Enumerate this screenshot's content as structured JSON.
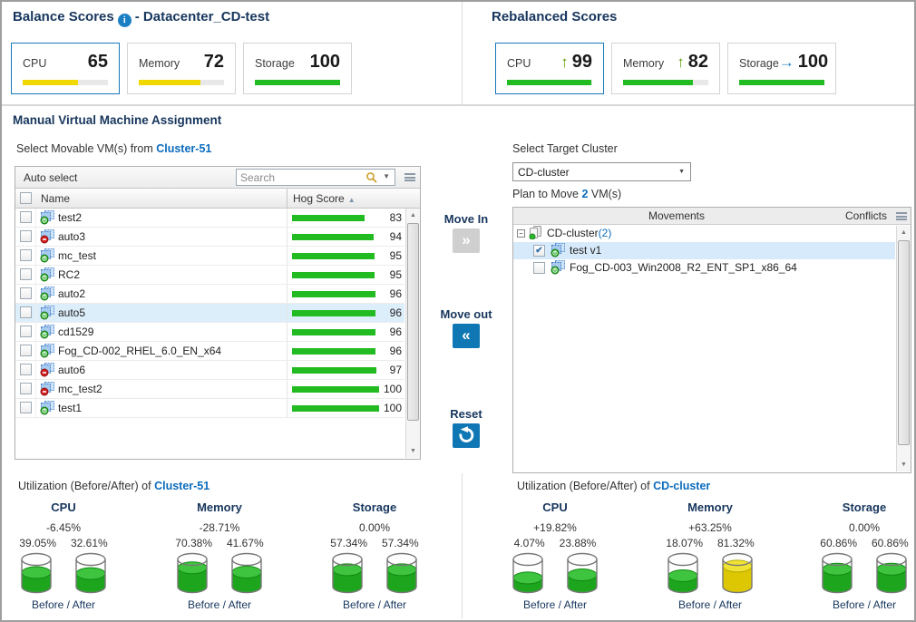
{
  "colors": {
    "accent_blue": "#1779ba",
    "link_blue": "#0b6cbd",
    "score_green": "#22bb22",
    "score_yellow": "#f0d800",
    "trend_up_green": "#5f9e00",
    "trend_right_blue": "#1779ba",
    "gauge_green": "#1ea51e",
    "gauge_yellow": "#ddc702"
  },
  "balance_scores": {
    "title": "Balance Scores",
    "subtitle": "- Datacenter_CD-test",
    "cards": [
      {
        "label": "CPU",
        "value": "65",
        "bar_pct": 65,
        "bar_color": "#f0d800",
        "selected": true
      },
      {
        "label": "Memory",
        "value": "72",
        "bar_pct": 72,
        "bar_color": "#f0d800",
        "selected": false
      },
      {
        "label": "Storage",
        "value": "100",
        "bar_pct": 100,
        "bar_color": "#22bb22",
        "selected": false
      }
    ]
  },
  "rebalanced_scores": {
    "title": "Rebalanced Scores",
    "cards": [
      {
        "label": "CPU",
        "value": "99",
        "trend": "up",
        "bar_pct": 99,
        "bar_color": "#22bb22",
        "selected": true
      },
      {
        "label": "Memory",
        "value": "82",
        "trend": "up",
        "bar_pct": 82,
        "bar_color": "#22bb22",
        "selected": false
      },
      {
        "label": "Storage",
        "value": "100",
        "trend": "right",
        "bar_pct": 100,
        "bar_color": "#22bb22",
        "selected": false
      }
    ]
  },
  "manual": {
    "title": "Manual Virtual Machine Assignment",
    "source_prefix": "Select Movable VM(s) from",
    "source_cluster": "Cluster-51",
    "toolbar": {
      "auto_select": "Auto select",
      "search_placeholder": "Search"
    },
    "columns": {
      "name": "Name",
      "hog": "Hog Score"
    },
    "vm_rows": [
      {
        "name": "test2",
        "score": 83,
        "status": "running",
        "highlight": false
      },
      {
        "name": "auto3",
        "score": 94,
        "status": "stopped",
        "highlight": false
      },
      {
        "name": "mc_test",
        "score": 95,
        "status": "running",
        "highlight": false
      },
      {
        "name": "RC2",
        "score": 95,
        "status": "running",
        "highlight": false
      },
      {
        "name": "auto2",
        "score": 96,
        "status": "running",
        "highlight": false
      },
      {
        "name": "auto5",
        "score": 96,
        "status": "running",
        "highlight": true
      },
      {
        "name": "cd1529",
        "score": 96,
        "status": "running",
        "highlight": false
      },
      {
        "name": "Fog_CD-002_RHEL_6.0_EN_x64",
        "score": 96,
        "status": "running",
        "highlight": false
      },
      {
        "name": "auto6",
        "score": 97,
        "status": "stopped",
        "highlight": false
      },
      {
        "name": "mc_test2",
        "score": 100,
        "status": "stopped",
        "highlight": false
      },
      {
        "name": "test1",
        "score": 100,
        "status": "running",
        "highlight": false
      }
    ],
    "actions": {
      "move_in": "Move In",
      "move_out": "Move out",
      "reset": "Reset"
    },
    "target": {
      "label": "Select Target Cluster",
      "value": "CD-cluster",
      "plan_prefix": "Plan to Move",
      "plan_count": "2",
      "plan_suffix": "VM(s)",
      "col_movements": "Movements",
      "col_conflicts": "Conflicts",
      "cluster_node": {
        "name": "CD-cluster",
        "count": "(2)"
      },
      "rows": [
        {
          "name": "test v1",
          "checked": true,
          "status": "running",
          "highlight": true
        },
        {
          "name": "Fog_CD-003_Win2008_R2_ENT_SP1_x86_64",
          "checked": false,
          "status": "running",
          "highlight": false
        }
      ]
    }
  },
  "utilization": [
    {
      "prefix": "Utilization (Before/After) of",
      "cluster": "Cluster-51",
      "gauges": [
        {
          "label": "CPU",
          "delta": "-6.45%",
          "before": "39.05%",
          "after": "32.61%",
          "before_pct": 39.05,
          "after_pct": 32.61,
          "before_color": "green",
          "after_color": "green",
          "caption": "Before / After"
        },
        {
          "label": "Memory",
          "delta": "-28.71%",
          "before": "70.38%",
          "after": "41.67%",
          "before_pct": 70.38,
          "after_pct": 41.67,
          "before_color": "green",
          "after_color": "green",
          "caption": "Before / After"
        },
        {
          "label": "Storage",
          "delta": "0.00%",
          "before": "57.34%",
          "after": "57.34%",
          "before_pct": 57.34,
          "after_pct": 57.34,
          "before_color": "green",
          "after_color": "green",
          "caption": "Before / After"
        }
      ]
    },
    {
      "prefix": "Utilization (Before/After) of",
      "cluster": "CD-cluster",
      "gauges": [
        {
          "label": "CPU",
          "delta": "+19.82%",
          "before": "4.07%",
          "after": "23.88%",
          "before_pct": 4.07,
          "after_pct": 23.88,
          "before_color": "green",
          "after_color": "green",
          "caption": "Before / After"
        },
        {
          "label": "Memory",
          "delta": "+63.25%",
          "before": "18.07%",
          "after": "81.32%",
          "before_pct": 18.07,
          "after_pct": 81.32,
          "before_color": "green",
          "after_color": "yellow",
          "caption": "Before / After"
        },
        {
          "label": "Storage",
          "delta": "0.00%",
          "before": "60.86%",
          "after": "60.86%",
          "before_pct": 60.86,
          "after_pct": 60.86,
          "before_color": "green",
          "after_color": "green",
          "caption": "Before / After"
        }
      ]
    }
  ]
}
